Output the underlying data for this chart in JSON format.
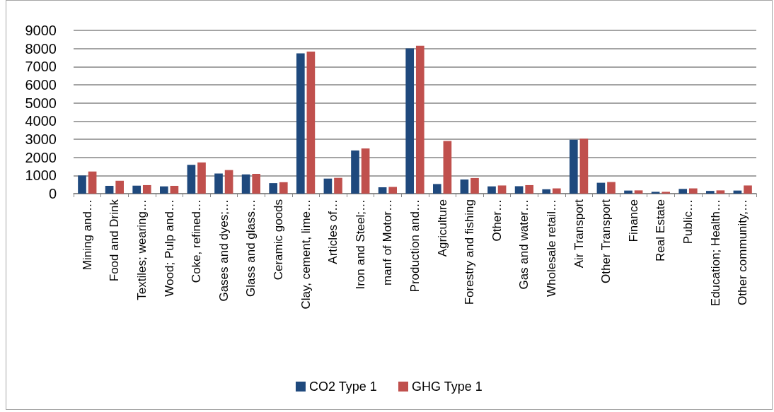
{
  "chart_data": {
    "type": "bar",
    "categories": [
      "Mining and…",
      "Food and Drink",
      "Textiles; wearing…",
      "Wood; Pulp and…",
      "Coke, refined…",
      "Gases and dyes;…",
      "Glass and glass…",
      "Ceramic goods",
      "Clay, cement, lime…",
      "Articles of…",
      "Iron and Steel;…",
      "manf of Motor…",
      "Production and…",
      "Agriculture",
      "Forestry and fishing",
      "Other…",
      "Gas and water…",
      "Wholesale retail…",
      "Air Transport",
      "Other Transport",
      "Finance",
      "Real Estate",
      "Public…",
      "Education; Health…",
      "Other community,…"
    ],
    "series": [
      {
        "name": "CO2 Type 1",
        "color": "#1f497d",
        "values": [
          1000,
          430,
          440,
          400,
          1590,
          1110,
          1060,
          580,
          7730,
          830,
          2380,
          350,
          8010,
          530,
          780,
          400,
          410,
          240,
          2970,
          600,
          170,
          100,
          260,
          150,
          170
        ]
      },
      {
        "name": "GHG Type 1",
        "color": "#c0504d",
        "values": [
          1220,
          710,
          470,
          430,
          1720,
          1300,
          1090,
          630,
          7830,
          870,
          2490,
          370,
          8150,
          2900,
          860,
          450,
          470,
          290,
          3030,
          640,
          180,
          100,
          290,
          180,
          450
        ]
      }
    ],
    "ylim": [
      0,
      9000
    ],
    "yticks": [
      0,
      1000,
      2000,
      3000,
      4000,
      5000,
      6000,
      7000,
      8000,
      9000
    ],
    "grid": "y",
    "legend": "bottom"
  }
}
